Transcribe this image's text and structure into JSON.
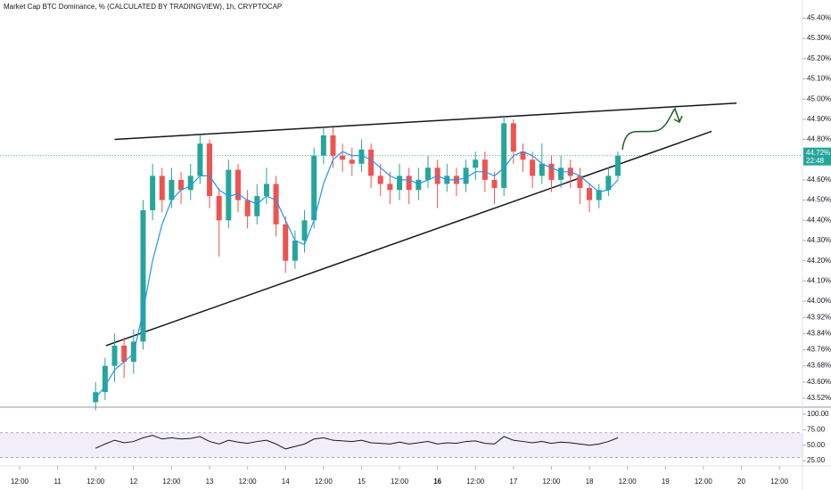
{
  "chart_data": {
    "type": "candlestick",
    "title": "Market Cap BTC Dominance, % (CALCULATED BY TRADINGVIEW), 1h, CRYPTOCAP",
    "x": [
      24,
      27,
      30,
      33,
      36,
      39,
      42,
      45,
      48,
      51,
      54,
      57,
      60,
      63,
      66,
      69,
      72,
      75,
      78,
      81,
      84,
      87,
      90,
      93,
      96,
      99,
      102,
      105,
      108,
      111,
      114,
      117,
      120,
      123,
      126,
      129,
      132,
      135,
      138,
      141,
      144,
      147,
      150,
      153,
      156,
      159,
      162,
      165,
      168,
      171,
      174,
      177,
      180,
      183,
      186,
      189
    ],
    "open": [
      43.5,
      43.55,
      43.68,
      43.78,
      43.7,
      43.8,
      44.45,
      44.62,
      44.5,
      44.6,
      44.55,
      44.62,
      44.78,
      44.52,
      44.4,
      44.65,
      44.5,
      44.42,
      44.52,
      44.58,
      44.38,
      44.2,
      44.3,
      44.4,
      44.72,
      44.82,
      44.72,
      44.7,
      44.68,
      44.75,
      44.62,
      44.58,
      44.55,
      44.62,
      44.55,
      44.6,
      44.66,
      44.58,
      44.62,
      44.58,
      44.66,
      44.7,
      44.6,
      44.56,
      44.88,
      44.74,
      44.7,
      44.62,
      44.68,
      44.6,
      44.66,
      44.62,
      44.56,
      44.5,
      44.55,
      44.62
    ],
    "high": [
      43.6,
      43.72,
      43.84,
      43.82,
      43.86,
      44.5,
      44.68,
      44.66,
      44.66,
      44.64,
      44.68,
      44.82,
      44.8,
      44.56,
      44.7,
      44.68,
      44.55,
      44.58,
      44.66,
      44.62,
      44.42,
      44.35,
      44.45,
      44.76,
      44.86,
      44.86,
      44.78,
      44.76,
      44.8,
      44.78,
      44.68,
      44.64,
      44.68,
      44.66,
      44.66,
      44.72,
      44.7,
      44.68,
      44.66,
      44.7,
      44.74,
      44.74,
      44.64,
      44.92,
      44.9,
      44.78,
      44.74,
      44.78,
      44.72,
      44.72,
      44.7,
      44.66,
      44.58,
      44.58,
      44.66,
      44.74
    ],
    "low": [
      43.46,
      43.51,
      43.6,
      43.62,
      43.64,
      43.76,
      44.4,
      44.44,
      44.46,
      44.48,
      44.5,
      44.58,
      44.46,
      44.22,
      44.36,
      44.44,
      44.36,
      44.38,
      44.48,
      44.32,
      44.14,
      44.16,
      44.24,
      44.36,
      44.68,
      44.66,
      44.64,
      44.62,
      44.64,
      44.56,
      44.52,
      44.48,
      44.5,
      44.48,
      44.5,
      44.56,
      44.46,
      44.54,
      44.52,
      44.54,
      44.6,
      44.54,
      44.48,
      44.52,
      44.68,
      44.64,
      44.56,
      44.58,
      44.54,
      44.56,
      44.56,
      44.48,
      44.44,
      44.46,
      44.52,
      44.6
    ],
    "close": [
      43.55,
      43.68,
      43.78,
      43.7,
      43.8,
      44.45,
      44.62,
      44.5,
      44.6,
      44.55,
      44.62,
      44.78,
      44.52,
      44.4,
      44.65,
      44.5,
      44.42,
      44.52,
      44.58,
      44.38,
      44.2,
      44.3,
      44.4,
      44.72,
      44.82,
      44.72,
      44.7,
      44.68,
      44.75,
      44.62,
      44.58,
      44.55,
      44.62,
      44.55,
      44.6,
      44.66,
      44.58,
      44.62,
      44.58,
      44.66,
      44.7,
      44.6,
      44.56,
      44.88,
      44.74,
      44.7,
      44.62,
      44.68,
      44.6,
      44.66,
      44.62,
      44.56,
      44.5,
      44.55,
      44.62,
      44.72
    ],
    "up_color": "#26a69a",
    "down_color": "#ef5350",
    "ma": {
      "color": "#2196f3",
      "values": [
        43.52,
        43.58,
        43.66,
        43.7,
        43.74,
        43.95,
        44.2,
        44.38,
        44.5,
        44.55,
        44.57,
        44.62,
        44.62,
        44.55,
        44.52,
        44.53,
        44.5,
        44.48,
        44.52,
        44.5,
        44.4,
        44.3,
        44.28,
        44.4,
        44.58,
        44.7,
        44.74,
        44.72,
        44.72,
        44.7,
        44.66,
        44.62,
        44.6,
        44.6,
        44.58,
        44.6,
        44.62,
        44.6,
        44.6,
        44.61,
        44.64,
        44.64,
        44.62,
        44.66,
        44.72,
        44.74,
        44.72,
        44.68,
        44.66,
        44.64,
        44.64,
        44.62,
        44.58,
        44.54,
        44.55,
        44.6
      ]
    },
    "trendlines": [
      {
        "x": [
          30,
          226.5
        ],
        "y": [
          44.8,
          44.98
        ]
      },
      {
        "x": [
          27.3,
          218.6
        ],
        "y": [
          43.78,
          44.84
        ]
      }
    ],
    "xlim": [
      -6.2,
      247.3
    ],
    "ylim": [
      43.48,
      45.49
    ],
    "yticks": [
      {
        "value": 45.4,
        "label": "45.40%"
      },
      {
        "value": 45.3,
        "label": "45.30%"
      },
      {
        "value": 45.2,
        "label": "45.20%"
      },
      {
        "value": 45.1,
        "label": "45.10%"
      },
      {
        "value": 45.0,
        "label": "45.00%"
      },
      {
        "value": 44.9,
        "label": "44.90%"
      },
      {
        "value": 44.8,
        "label": "44.80%"
      },
      {
        "value": 44.6,
        "label": "44.60%"
      },
      {
        "value": 44.5,
        "label": "44.50%"
      },
      {
        "value": 44.4,
        "label": "44.40%"
      },
      {
        "value": 44.3,
        "label": "44.30%"
      },
      {
        "value": 44.2,
        "label": "44.20%"
      },
      {
        "value": 44.1,
        "label": "44.10%"
      },
      {
        "value": 44.0,
        "label": "44.00%"
      },
      {
        "value": 43.92,
        "label": "43.92%"
      },
      {
        "value": 43.84,
        "label": "43.84%"
      },
      {
        "value": 43.76,
        "label": "43.76%"
      },
      {
        "value": 43.68,
        "label": "43.68%"
      },
      {
        "value": 43.6,
        "label": "43.60%"
      },
      {
        "value": 43.52,
        "label": "43.52%"
      }
    ],
    "xticks": [
      {
        "value": 0,
        "label": "12:00"
      },
      {
        "value": 12,
        "label": "11"
      },
      {
        "value": 24,
        "label": "12:00"
      },
      {
        "value": 36,
        "label": "12"
      },
      {
        "value": 48,
        "label": "12:00"
      },
      {
        "value": 60,
        "label": "13"
      },
      {
        "value": 72,
        "label": "12:00"
      },
      {
        "value": 84,
        "label": "14"
      },
      {
        "value": 96,
        "label": "12:00"
      },
      {
        "value": 108,
        "label": "15"
      },
      {
        "value": 120,
        "label": "12:00"
      },
      {
        "value": 132,
        "label": "16"
      },
      {
        "value": 144,
        "label": "12:00"
      },
      {
        "value": 156,
        "label": "17"
      },
      {
        "value": 168,
        "label": "12:00"
      },
      {
        "value": 180,
        "label": "18"
      },
      {
        "value": 192,
        "label": "12:00"
      },
      {
        "value": 204,
        "label": "19"
      },
      {
        "value": 216,
        "label": "12:00"
      },
      {
        "value": 228,
        "label": "20"
      },
      {
        "value": 240,
        "label": "12:00"
      }
    ],
    "last_price": {
      "value": 44.72,
      "label": "44.72%"
    },
    "countdown": "22:48",
    "rsi": {
      "color": "#131722",
      "values": [
        45,
        52,
        58,
        54,
        56,
        62,
        66,
        60,
        62,
        60,
        61,
        64,
        56,
        52,
        58,
        55,
        53,
        56,
        58,
        52,
        44,
        48,
        52,
        60,
        62,
        58,
        57,
        56,
        58,
        54,
        53,
        52,
        55,
        52,
        54,
        56,
        52,
        54,
        53,
        56,
        57,
        53,
        52,
        64,
        58,
        56,
        54,
        56,
        53,
        55,
        54,
        52,
        50,
        52,
        56,
        62
      ],
      "ylim": [
        18,
        110
      ],
      "band": [
        30,
        70
      ],
      "yticks": [
        {
          "value": 100,
          "label": "100.00"
        },
        {
          "value": 75,
          "label": "75.00"
        },
        {
          "value": 50,
          "label": "50.00"
        },
        {
          "value": 25,
          "label": "25.00"
        }
      ]
    }
  }
}
